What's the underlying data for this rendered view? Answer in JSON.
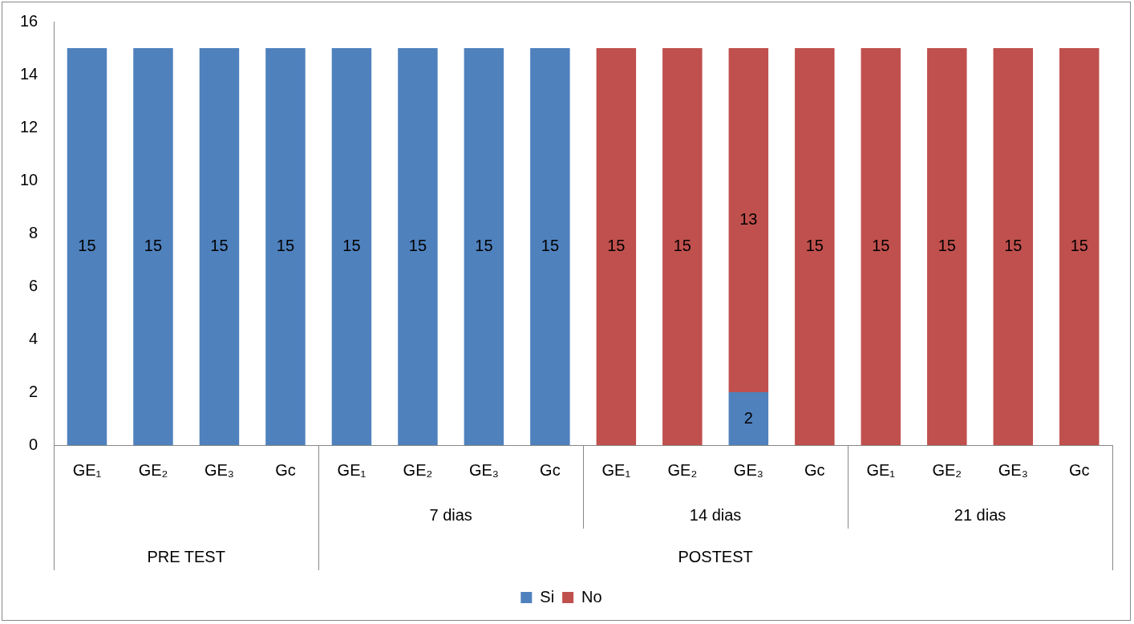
{
  "chart_data": {
    "type": "bar",
    "stacked": true,
    "categories": [
      "GE₁",
      "GE₂",
      "GE₃",
      "Gc",
      "GE₁",
      "GE₂",
      "GE₃",
      "Gc",
      "GE₁",
      "GE₂",
      "GE₃",
      "Gc",
      "GE₁",
      "GE₂",
      "GE₃",
      "Gc"
    ],
    "series": [
      {
        "name": "Si",
        "color": "#4f81bd",
        "values": [
          15,
          15,
          15,
          15,
          15,
          15,
          15,
          15,
          null,
          null,
          2,
          null,
          null,
          null,
          null,
          null
        ]
      },
      {
        "name": "No",
        "color": "#c0504d",
        "values": [
          null,
          null,
          null,
          null,
          null,
          null,
          null,
          null,
          15,
          15,
          13,
          15,
          15,
          15,
          15,
          15
        ]
      }
    ],
    "annotations": [
      "7 dias",
      "14 dias",
      "21 dias",
      "PRE TEST",
      "POSTEST"
    ],
    "ylim": [
      0,
      16
    ],
    "yticks": [
      0,
      2,
      4,
      6,
      8,
      10,
      12,
      14,
      16
    ],
    "grid": false,
    "data_labels": true,
    "legend": "bottom"
  }
}
